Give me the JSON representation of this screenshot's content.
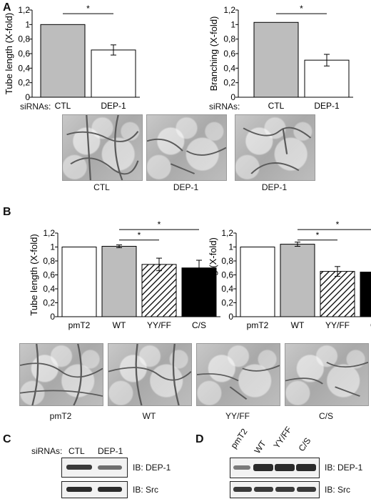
{
  "panels": {
    "a": "A",
    "b": "B",
    "c": "C",
    "d": "D"
  },
  "panelA": {
    "row_label": "siRNAs:",
    "micro_labels": [
      "CTL",
      "DEP-1",
      "DEP-1"
    ]
  },
  "panelB": {
    "micro_labels": [
      "pmT2",
      "WT",
      "YY/FF",
      "C/S"
    ]
  },
  "panelC": {
    "lane_header": "siRNAs:",
    "lanes": [
      "CTL",
      "DEP-1"
    ],
    "blots": [
      "IB: DEP-1",
      "IB: Src"
    ]
  },
  "panelD": {
    "lanes": [
      "pmT2",
      "WT",
      "YY/FF",
      "C/S"
    ],
    "blots": [
      "IB: DEP-1",
      "IB: Src"
    ]
  },
  "chart_data": [
    {
      "type": "bar",
      "ylabel": "Tube length (X-fold)",
      "categories": [
        "CTL",
        "DEP-1"
      ],
      "values": [
        1.0,
        0.65
      ],
      "errors": [
        0,
        0.07
      ],
      "ylim": [
        0,
        1.2
      ],
      "yticks": [
        "0",
        "0,2",
        "0,4",
        "0,6",
        "0,8",
        "1",
        "1,2"
      ],
      "fills": [
        "#bdbdbd",
        "#ffffff"
      ],
      "significance": [
        {
          "from": 0,
          "to": 1,
          "label": "*"
        }
      ]
    },
    {
      "type": "bar",
      "ylabel": "Branching (X-fold)",
      "categories": [
        "CTL",
        "DEP-1"
      ],
      "values": [
        1.03,
        0.51
      ],
      "errors": [
        0,
        0.08
      ],
      "ylim": [
        0,
        1.2
      ],
      "yticks": [
        "0",
        "0,2",
        "0,4",
        "0,6",
        "0,8",
        "1",
        "1,2"
      ],
      "fills": [
        "#bdbdbd",
        "#ffffff"
      ],
      "significance": [
        {
          "from": 0,
          "to": 1,
          "label": "*"
        }
      ]
    },
    {
      "type": "bar",
      "ylabel": "Tube length (X-fold)",
      "categories": [
        "pmT2",
        "WT",
        "YY/FF",
        "C/S"
      ],
      "values": [
        1.0,
        1.01,
        0.75,
        0.7
      ],
      "errors": [
        0,
        0.02,
        0.09,
        0.11
      ],
      "ylim": [
        0,
        1.2
      ],
      "yticks": [
        "0",
        "0,2",
        "0,4",
        "0,6",
        "0,8",
        "1",
        "1,2"
      ],
      "fills": [
        "#ffffff",
        "#bdbdbd",
        "hatch",
        "#000000"
      ],
      "significance": [
        {
          "from": 1,
          "to": 2,
          "label": "*"
        },
        {
          "from": 1,
          "to": 3,
          "label": "*"
        }
      ]
    },
    {
      "type": "bar",
      "ylabel": "Branching (X-fold)",
      "categories": [
        "pmT2",
        "WT",
        "YY/FF",
        "C/S"
      ],
      "values": [
        1.0,
        1.04,
        0.65,
        0.64
      ],
      "errors": [
        0,
        0.03,
        0.07,
        0.05
      ],
      "ylim": [
        0,
        1.2
      ],
      "yticks": [
        "0",
        "0,2",
        "0,4",
        "0,6",
        "0,8",
        "1",
        "1,2"
      ],
      "fills": [
        "#ffffff",
        "#bdbdbd",
        "hatch",
        "#000000"
      ],
      "significance": [
        {
          "from": 1,
          "to": 2,
          "label": "*"
        },
        {
          "from": 1,
          "to": 3,
          "label": "*"
        }
      ]
    }
  ]
}
